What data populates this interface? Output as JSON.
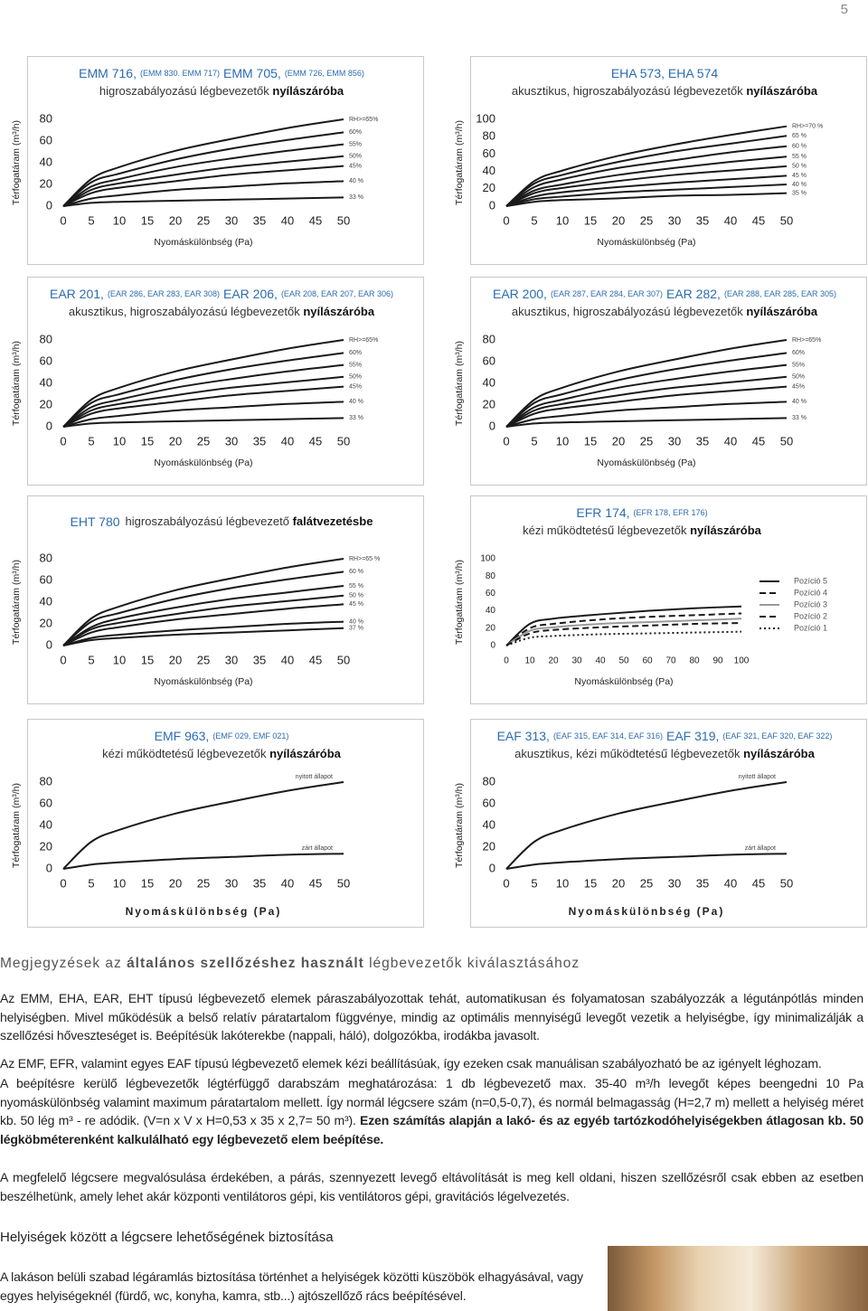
{
  "page_number": "5",
  "chart_data": [
    {
      "type": "line",
      "title": [
        "EMM 716,",
        "(EMM 830. EMM 717)",
        "EMM 705,",
        "(EMM 726, EMM 856)"
      ],
      "subtitle": [
        "higroszabályozású légbevezetők ",
        "nyílászáróba"
      ],
      "xlabel": "Nyomáskülönbség (Pa)",
      "ylabel": "Térfogatáram (m³/h)",
      "x": [
        0,
        5,
        10,
        20,
        30,
        40,
        50
      ],
      "xlim": [
        0,
        50
      ],
      "xticks": [
        0,
        5,
        10,
        15,
        20,
        25,
        30,
        35,
        40,
        45,
        50
      ],
      "ylim": [
        0,
        80
      ],
      "yticks": [
        0,
        20,
        40,
        60,
        80
      ],
      "series": [
        {
          "name": "RH>=65%",
          "color": "#1a1a1a",
          "values": [
            0,
            25,
            36,
            51,
            62,
            72,
            80
          ]
        },
        {
          "name": "60%",
          "color": "#1a1a1a",
          "values": [
            0,
            22,
            30,
            43,
            53,
            61,
            68
          ]
        },
        {
          "name": "55%",
          "color": "#1a1a1a",
          "values": [
            0,
            18,
            25,
            36,
            44,
            51,
            57
          ]
        },
        {
          "name": "50%",
          "color": "#1a1a1a",
          "values": [
            0,
            15,
            21,
            29,
            36,
            41,
            46
          ]
        },
        {
          "name": "45%",
          "color": "#1a1a1a",
          "values": [
            0,
            12,
            17,
            23,
            29,
            33,
            37
          ]
        },
        {
          "name": "40 %",
          "color": "#1a1a1a",
          "values": [
            0,
            7,
            10,
            15,
            18,
            21,
            23
          ]
        },
        {
          "name": "33 %",
          "color": "#1a1a1a",
          "values": [
            0,
            3,
            4,
            5,
            6,
            7,
            8
          ]
        }
      ]
    },
    {
      "type": "line",
      "title": [
        "EHA 573, EHA 574"
      ],
      "subtitle": [
        "akusztikus, higroszabályozású légbevezetők ",
        "nyílászáróba"
      ],
      "xlabel": "Nyomáskülönbség (Pa)",
      "ylabel": "Térfogatáram (m³/h)",
      "x": [
        0,
        5,
        10,
        20,
        30,
        40,
        50
      ],
      "xlim": [
        0,
        50
      ],
      "xticks": [
        0,
        5,
        10,
        15,
        20,
        25,
        30,
        35,
        40,
        45,
        50
      ],
      "ylim": [
        0,
        100
      ],
      "yticks": [
        0,
        20,
        40,
        60,
        80,
        100
      ],
      "series": [
        {
          "name": "RH>=70 %",
          "color": "#1a1a1a",
          "values": [
            0,
            29,
            41,
            58,
            71,
            82,
            92
          ]
        },
        {
          "name": "65 %",
          "color": "#1a1a1a",
          "values": [
            0,
            26,
            36,
            51,
            63,
            72,
            81
          ]
        },
        {
          "name": "60 %",
          "color": "#1a1a1a",
          "values": [
            0,
            22,
            31,
            44,
            53,
            62,
            69
          ]
        },
        {
          "name": "55 %",
          "color": "#1a1a1a",
          "values": [
            0,
            18,
            25,
            36,
            44,
            51,
            57
          ]
        },
        {
          "name": "50 %",
          "color": "#1a1a1a",
          "values": [
            0,
            15,
            21,
            29,
            36,
            41,
            46
          ]
        },
        {
          "name": "45 %",
          "color": "#1a1a1a",
          "values": [
            0,
            11,
            16,
            22,
            27,
            31,
            35
          ]
        },
        {
          "name": "40 %",
          "color": "#1a1a1a",
          "values": [
            0,
            8,
            11,
            16,
            19,
            22,
            25
          ]
        },
        {
          "name": "35 %",
          "color": "#1a1a1a",
          "values": [
            0,
            5,
            7,
            9,
            12,
            13,
            15
          ]
        }
      ]
    },
    {
      "type": "line",
      "title": [
        "EAR 201,",
        "(EAR 286, EAR 283, EAR 308)",
        "EAR 206,",
        "(EAR 208, EAR 207, EAR 306)"
      ],
      "subtitle": [
        "akusztikus, higroszabályozású légbevezetők ",
        "nyílászáróba"
      ],
      "xlabel": "Nyomáskülönbség (Pa)",
      "ylabel": "Térfogatáram (m³/h)",
      "x": [
        0,
        5,
        10,
        20,
        30,
        40,
        50
      ],
      "xlim": [
        0,
        50
      ],
      "xticks": [
        0,
        5,
        10,
        15,
        20,
        25,
        30,
        35,
        40,
        45,
        50
      ],
      "ylim": [
        0,
        80
      ],
      "yticks": [
        0,
        20,
        40,
        60,
        80
      ],
      "series": [
        {
          "name": "RH>=65%",
          "color": "#1a1a1a",
          "values": [
            0,
            25,
            36,
            51,
            62,
            72,
            80
          ]
        },
        {
          "name": "60%",
          "color": "#1a1a1a",
          "values": [
            0,
            22,
            30,
            43,
            53,
            61,
            68
          ]
        },
        {
          "name": "55%",
          "color": "#1a1a1a",
          "values": [
            0,
            18,
            25,
            36,
            44,
            51,
            57
          ]
        },
        {
          "name": "50%",
          "color": "#1a1a1a",
          "values": [
            0,
            15,
            21,
            29,
            36,
            41,
            46
          ]
        },
        {
          "name": "45%",
          "color": "#1a1a1a",
          "values": [
            0,
            12,
            17,
            23,
            29,
            33,
            37
          ]
        },
        {
          "name": "40 %",
          "color": "#1a1a1a",
          "values": [
            0,
            7,
            10,
            15,
            18,
            21,
            23
          ]
        },
        {
          "name": "33 %",
          "color": "#1a1a1a",
          "values": [
            0,
            3,
            4,
            5,
            6,
            7,
            8
          ]
        }
      ]
    },
    {
      "type": "line",
      "title": [
        "EAR 200,",
        "(EAR 287, EAR 284, EAR 307)",
        "EAR 282,",
        "(EAR 288, EAR 285, EAR 305)"
      ],
      "subtitle": [
        "akusztikus, higroszabályozású légbevezetők ",
        "nyílászáróba"
      ],
      "xlabel": "Nyomáskülönbség (Pa)",
      "ylabel": "Térfogatáram (m³/h)",
      "x": [
        0,
        5,
        10,
        20,
        30,
        40,
        50
      ],
      "xlim": [
        0,
        50
      ],
      "xticks": [
        0,
        5,
        10,
        15,
        20,
        25,
        30,
        35,
        40,
        45,
        50
      ],
      "ylim": [
        0,
        80
      ],
      "yticks": [
        0,
        20,
        40,
        60,
        80
      ],
      "series": [
        {
          "name": "RH>=65%",
          "color": "#1a1a1a",
          "values": [
            0,
            25,
            36,
            51,
            62,
            72,
            80
          ]
        },
        {
          "name": "60%",
          "color": "#1a1a1a",
          "values": [
            0,
            22,
            30,
            43,
            53,
            61,
            68
          ]
        },
        {
          "name": "55%",
          "color": "#1a1a1a",
          "values": [
            0,
            18,
            25,
            36,
            44,
            51,
            57
          ]
        },
        {
          "name": "50%",
          "color": "#1a1a1a",
          "values": [
            0,
            15,
            21,
            29,
            36,
            41,
            46
          ]
        },
        {
          "name": "45%",
          "color": "#1a1a1a",
          "values": [
            0,
            12,
            17,
            23,
            29,
            33,
            37
          ]
        },
        {
          "name": "40 %",
          "color": "#1a1a1a",
          "values": [
            0,
            7,
            10,
            15,
            18,
            21,
            23
          ]
        },
        {
          "name": "33 %",
          "color": "#1a1a1a",
          "values": [
            0,
            3,
            4,
            5,
            6,
            7,
            8
          ]
        }
      ]
    },
    {
      "type": "line",
      "title": [
        "EHT 780"
      ],
      "subtitle": [
        "higroszabályozású légbevezető ",
        "falátvezetésbe"
      ],
      "xlabel": "Nyomáskülönbség (Pa)",
      "ylabel": "Térfogatáram (m³/h)",
      "x": [
        0,
        5,
        10,
        20,
        30,
        40,
        50
      ],
      "xlim": [
        0,
        50
      ],
      "xticks": [
        0,
        5,
        10,
        15,
        20,
        25,
        30,
        35,
        40,
        45,
        50
      ],
      "ylim": [
        0,
        80
      ],
      "yticks": [
        0,
        20,
        40,
        60,
        80
      ],
      "series": [
        {
          "name": "RH>=65 %",
          "color": "#1a1a1a",
          "values": [
            0,
            25,
            36,
            51,
            62,
            72,
            80
          ]
        },
        {
          "name": "60 %",
          "color": "#1a1a1a",
          "values": [
            0,
            22,
            30,
            43,
            53,
            61,
            68
          ]
        },
        {
          "name": "55 %",
          "color": "#1a1a1a",
          "values": [
            0,
            17,
            25,
            35,
            43,
            49,
            55
          ]
        },
        {
          "name": "50 %",
          "color": "#1a1a1a",
          "values": [
            0,
            15,
            21,
            29,
            36,
            41,
            46
          ]
        },
        {
          "name": "45 %",
          "color": "#1a1a1a",
          "values": [
            0,
            12,
            17,
            24,
            29,
            34,
            38
          ]
        },
        {
          "name": "40 %",
          "color": "#1a1a1a",
          "values": [
            0,
            7,
            10,
            14,
            17,
            20,
            22
          ]
        },
        {
          "name": "37 %",
          "color": "#1a1a1a",
          "values": [
            0,
            5,
            7,
            10,
            12,
            14,
            16
          ]
        }
      ]
    },
    {
      "type": "line",
      "title": [
        "EFR 174,",
        "(EFR 178, EFR 176)"
      ],
      "subtitle": [
        "kézi működtetésű légbevezetők ",
        "nyílászáróba"
      ],
      "xlabel": "Nyomáskülönbség (Pa)",
      "ylabel": "Térfogatáram (m³/h)",
      "legend": "right",
      "x": [
        0,
        10,
        20,
        40,
        60,
        80,
        100
      ],
      "xlim": [
        0,
        100
      ],
      "xticks": [
        0,
        10,
        20,
        30,
        40,
        50,
        60,
        70,
        80,
        90,
        100
      ],
      "ylim": [
        0,
        100
      ],
      "yticks": [
        0,
        20,
        40,
        60,
        80,
        100
      ],
      "series": [
        {
          "name": "Pozíció 5",
          "color": "#1a1a1a",
          "style": "solid",
          "values": [
            0,
            25,
            31,
            36,
            40,
            43,
            45
          ]
        },
        {
          "name": "Pozíció 4",
          "color": "#1a1a1a",
          "style": "dashed",
          "values": [
            0,
            20,
            25,
            30,
            33,
            35,
            37
          ]
        },
        {
          "name": "Pozíció 3",
          "color": "#9a9a9a",
          "style": "solid",
          "values": [
            0,
            17,
            21,
            25,
            27,
            29,
            31
          ]
        },
        {
          "name": "Pozíció 2",
          "color": "#1a1a1a",
          "style": "dashed",
          "values": [
            0,
            14,
            18,
            21,
            23,
            25,
            26
          ]
        },
        {
          "name": "Pozíció 1",
          "color": "#1a1a1a",
          "style": "dotted",
          "values": [
            0,
            9,
            11,
            13,
            14,
            15,
            16
          ]
        }
      ]
    },
    {
      "type": "line",
      "title": [
        "EMF 963,",
        "(EMF 029, EMF 021)"
      ],
      "subtitle": [
        "kézi működtetésű légbevezetők ",
        "nyílászáróba"
      ],
      "xlabel": "Nyomáskülönbség (Pa)",
      "ylabel": "Térfogatáram (m³/h)",
      "x": [
        0,
        5,
        10,
        20,
        30,
        40,
        50
      ],
      "xlim": [
        0,
        50
      ],
      "xticks": [
        0,
        5,
        10,
        15,
        20,
        25,
        30,
        35,
        40,
        45,
        50
      ],
      "ylim": [
        0,
        80
      ],
      "yticks": [
        0,
        20,
        40,
        60,
        80
      ],
      "series": [
        {
          "name": "nyitott állapot",
          "color": "#1a1a1a",
          "values": [
            0,
            25,
            36,
            51,
            62,
            72,
            80
          ]
        },
        {
          "name": "zárt állapot",
          "color": "#1a1a1a",
          "values": [
            0,
            4,
            6,
            9,
            11,
            13,
            14
          ]
        }
      ]
    },
    {
      "type": "line",
      "title": [
        "EAF 313,",
        "(EAF 315, EAF 314, EAF 316)",
        "EAF 319,",
        "(EAF 321, EAF 320, EAF 322)"
      ],
      "subtitle": [
        "akusztikus, kézi működtetésű légbevezetők ",
        "nyílászáróba"
      ],
      "xlabel": "Nyomáskülönbség (Pa)",
      "ylabel": "Térfogatáram (m³/h)",
      "x": [
        0,
        5,
        10,
        20,
        30,
        40,
        50
      ],
      "xlim": [
        0,
        50
      ],
      "xticks": [
        0,
        5,
        10,
        15,
        20,
        25,
        30,
        35,
        40,
        45,
        50
      ],
      "ylim": [
        0,
        80
      ],
      "yticks": [
        0,
        20,
        40,
        60,
        80
      ],
      "series": [
        {
          "name": "nyitott állapot",
          "color": "#1a1a1a",
          "values": [
            0,
            25,
            36,
            51,
            62,
            72,
            80
          ]
        },
        {
          "name": "zárt állapot",
          "color": "#1a1a1a",
          "values": [
            0,
            4,
            6,
            9,
            11,
            13,
            14
          ]
        }
      ]
    }
  ],
  "notes": {
    "heading": [
      {
        "text": "Megjegyzések az "
      },
      {
        "text": "általános szellőzéshez használt",
        "bold": true
      },
      {
        "text": " légbevezetők kiválasztásához"
      }
    ],
    "paragraphs": [
      [
        {
          "text": "Az EMM, EHA, EAR, EHT típusú légbevezető elemek páraszabályozottak tehát, automatikusan és folyamatosan szabályozzák a légutánpótlás minden helyiségben. Mivel működésük a belső relatív páratartalom függvénye, mindig az optimális mennyiségű levegőt vezetik a helyiségbe, így minimalizálják a szellőzési hőveszteséget is. Beépítésük lakóterekbe (nappali, háló), dolgozókba, irodákba javasolt."
        }
      ],
      [
        {
          "text": "Az EMF, EFR, valamint egyes EAF típusú légbevezető elemek kézi beállításúak, így ezeken csak manuálisan szabályozható be az igényelt léghozam."
        }
      ],
      [
        {
          "text": "A beépítésre kerülő légbevezetők légtérfüggő darabszám meghatározása: 1 db légbevezető max. 35-40 m³/h levegőt képes beengedni 10 Pa nyomáskülönbség valamint maximum páratartalom mellett. Így normál légcsere szám (n=0,5-0,7), és normál belmagasság (H=2,7 m) mellett a helyiség méret kb. 50 lég m³ - re adódik. (V=n x V x H=0,53 x 35 x 2,7= 50 m³). "
        },
        {
          "text": "Ezen számítás alapján a lakó- és az egyéb tartózkodóhelyiségekben átlagosan kb. 50 légköbméterenként kalkulálható egy légbevezető elem beépítése.",
          "bold": true
        }
      ],
      [
        {
          "text": "A megfelelő légcsere megvalósulása érdekében, a párás, szennyezett levegő eltávolítását is meg kell oldani, hiszen szellőzésről csak ebben az esetben beszélhetünk, amely lehet akár központi ventilátoros gépi, kis ventilátoros gépi, gravitációs légelvezetés."
        }
      ]
    ],
    "heading2": "Helyiségek között a légcsere lehetőségének biztosítása",
    "last_paragraph": "A lakáson belüli szabad légáramlás biztosítása történhet a helyiségek közötti küszöbök elhagyásával, vagy egyes helyiségeknél (fürdő, wc, konyha, kamra, stb...) ajtószellőző rács beépítésével."
  }
}
